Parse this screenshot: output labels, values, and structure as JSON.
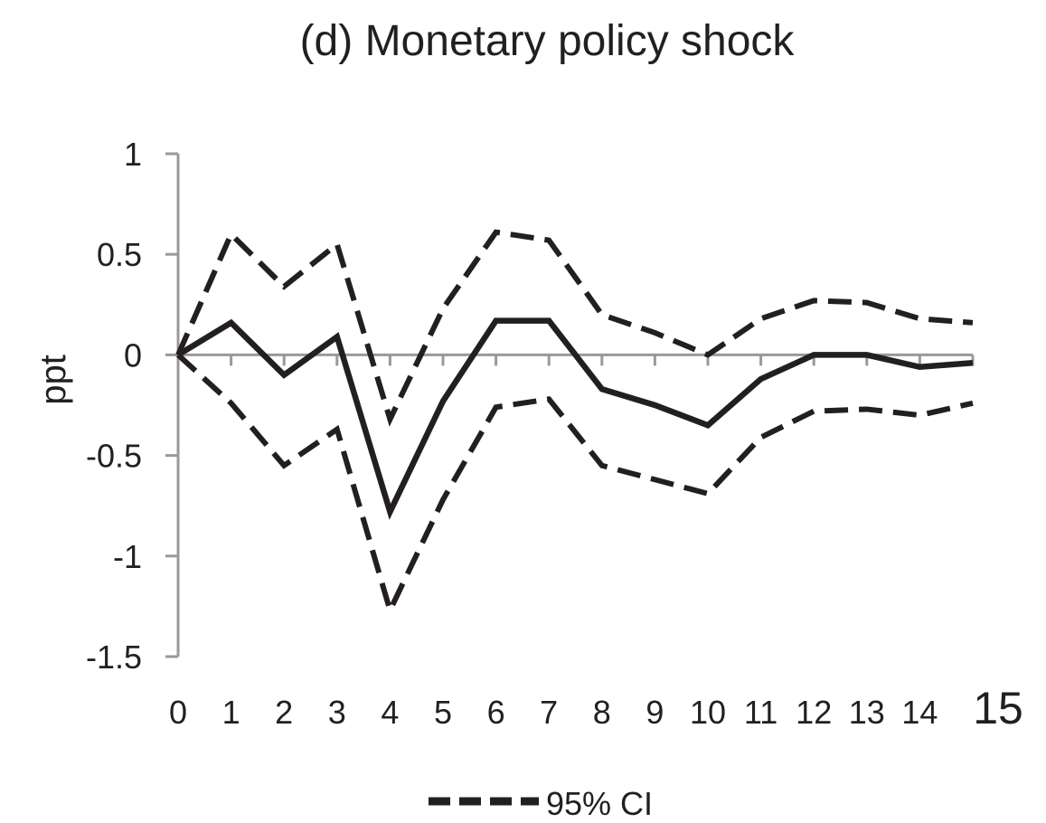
{
  "chart_data": {
    "type": "line",
    "title": "(d) Monetary policy shock",
    "xlabel": "",
    "ylabel": "ppt",
    "ylim": [
      -1.5,
      1
    ],
    "yticks": [
      "1",
      "0.5",
      "0",
      "-0.5",
      "-1",
      "-1.5"
    ],
    "ytick_values": [
      1,
      0.5,
      0,
      -0.5,
      -1,
      -1.5
    ],
    "x": [
      0,
      1,
      2,
      3,
      4,
      5,
      6,
      7,
      8,
      9,
      10,
      11,
      12,
      13,
      14,
      15
    ],
    "xtick_labels": [
      "0",
      "1",
      "2",
      "3",
      "4",
      "5",
      "6",
      "7",
      "8",
      "9",
      "10",
      "11",
      "12",
      "13",
      "14",
      "15"
    ],
    "grid": false,
    "legend_position": "bottom",
    "series": [
      {
        "style": "solid",
        "values": [
          0,
          0.16,
          -0.1,
          0.09,
          -0.78,
          -0.23,
          0.17,
          0.17,
          -0.17,
          -0.25,
          -0.35,
          -0.12,
          0,
          0,
          -0.06,
          -0.04
        ]
      },
      {
        "name": "95% CI",
        "style": "dashed",
        "values": [
          0,
          0.6,
          0.34,
          0.55,
          -0.32,
          0.23,
          0.61,
          0.57,
          0.2,
          0.11,
          0,
          0.18,
          0.27,
          0.26,
          0.18,
          0.16
        ]
      },
      {
        "style": "dashed",
        "values": [
          0,
          -0.24,
          -0.55,
          -0.37,
          -1.27,
          -0.72,
          -0.26,
          -0.22,
          -0.55,
          -0.62,
          -0.69,
          -0.41,
          -0.28,
          -0.27,
          -0.3,
          -0.24
        ]
      }
    ],
    "colors": {
      "line": "#231f20",
      "axis": "#999999"
    }
  }
}
